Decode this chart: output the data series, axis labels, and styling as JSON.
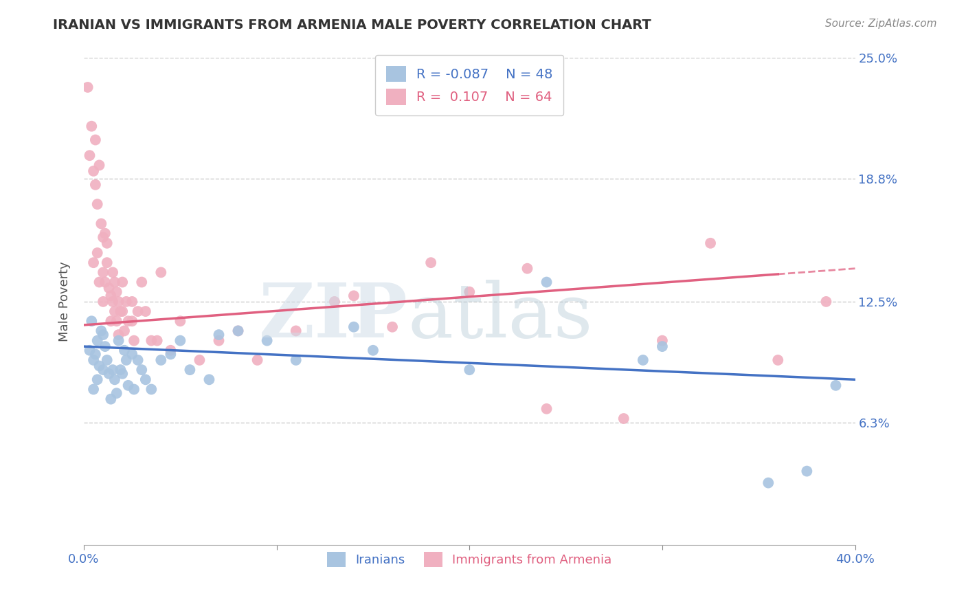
{
  "title": "IRANIAN VS IMMIGRANTS FROM ARMENIA MALE POVERTY CORRELATION CHART",
  "source": "Source: ZipAtlas.com",
  "ylabel": "Male Poverty",
  "xlabel": "",
  "xlim": [
    0.0,
    40.0
  ],
  "ylim": [
    0.0,
    25.0
  ],
  "xtick_labels": [
    "0.0%",
    "",
    "",
    "",
    "40.0%"
  ],
  "ytick_vals": [
    6.3,
    12.5,
    18.8,
    25.0
  ],
  "ytick_labels": [
    "6.3%",
    "12.5%",
    "18.8%",
    "25.0%"
  ],
  "background_color": "#ffffff",
  "blue_R": "-0.087",
  "blue_N": "48",
  "pink_R": "0.107",
  "pink_N": "64",
  "blue_color": "#a8c4e0",
  "pink_color": "#f0b0c0",
  "blue_line_color": "#4472c4",
  "pink_line_color": "#e06080",
  "legend_label_blue": "Iranians",
  "legend_label_pink": "Immigrants from Armenia",
  "blue_line_x0": 0.0,
  "blue_line_y0": 10.2,
  "blue_line_x1": 40.0,
  "blue_line_y1": 8.5,
  "pink_line_x0": 0.0,
  "pink_line_y0": 11.3,
  "pink_line_x1": 40.0,
  "pink_line_y1": 14.2,
  "pink_solid_end": 36.0,
  "iranians_x": [
    0.3,
    0.4,
    0.5,
    0.5,
    0.6,
    0.7,
    0.7,
    0.8,
    0.9,
    1.0,
    1.0,
    1.1,
    1.2,
    1.3,
    1.4,
    1.5,
    1.6,
    1.7,
    1.8,
    1.9,
    2.0,
    2.1,
    2.2,
    2.3,
    2.5,
    2.6,
    2.8,
    3.0,
    3.2,
    3.5,
    4.0,
    4.5,
    5.0,
    5.5,
    6.5,
    7.0,
    8.0,
    9.5,
    11.0,
    14.0,
    15.0,
    20.0,
    24.0,
    29.0,
    30.0,
    35.5,
    37.5,
    39.0
  ],
  "iranians_y": [
    10.0,
    11.5,
    9.5,
    8.0,
    9.8,
    10.5,
    8.5,
    9.2,
    11.0,
    10.8,
    9.0,
    10.2,
    9.5,
    8.8,
    7.5,
    9.0,
    8.5,
    7.8,
    10.5,
    9.0,
    8.8,
    10.0,
    9.5,
    8.2,
    9.8,
    8.0,
    9.5,
    9.0,
    8.5,
    8.0,
    9.5,
    9.8,
    10.5,
    9.0,
    8.5,
    10.8,
    11.0,
    10.5,
    9.5,
    11.2,
    10.0,
    9.0,
    13.5,
    9.5,
    10.2,
    3.2,
    3.8,
    8.2
  ],
  "armenia_x": [
    0.2,
    0.3,
    0.4,
    0.5,
    0.5,
    0.6,
    0.6,
    0.7,
    0.7,
    0.8,
    0.8,
    0.9,
    1.0,
    1.0,
    1.0,
    1.1,
    1.1,
    1.2,
    1.2,
    1.3,
    1.4,
    1.4,
    1.5,
    1.5,
    1.6,
    1.6,
    1.7,
    1.7,
    1.8,
    1.8,
    1.9,
    2.0,
    2.0,
    2.1,
    2.2,
    2.3,
    2.5,
    2.5,
    2.6,
    2.8,
    3.0,
    3.2,
    3.5,
    3.8,
    4.0,
    4.5,
    5.0,
    6.0,
    7.0,
    8.0,
    9.0,
    11.0,
    13.0,
    14.0,
    16.0,
    18.0,
    20.0,
    23.0,
    24.0,
    28.0,
    30.0,
    32.5,
    36.0,
    38.5
  ],
  "armenia_y": [
    23.5,
    20.0,
    21.5,
    19.2,
    14.5,
    20.8,
    18.5,
    17.5,
    15.0,
    19.5,
    13.5,
    16.5,
    15.8,
    14.0,
    12.5,
    16.0,
    13.5,
    15.5,
    14.5,
    13.2,
    12.8,
    11.5,
    14.0,
    12.5,
    13.5,
    12.0,
    11.5,
    13.0,
    12.5,
    10.8,
    12.0,
    13.5,
    12.0,
    11.0,
    12.5,
    11.5,
    12.5,
    11.5,
    10.5,
    12.0,
    13.5,
    12.0,
    10.5,
    10.5,
    14.0,
    10.0,
    11.5,
    9.5,
    10.5,
    11.0,
    9.5,
    11.0,
    12.5,
    12.8,
    11.2,
    14.5,
    13.0,
    14.2,
    7.0,
    6.5,
    10.5,
    15.5,
    9.5,
    12.5
  ]
}
